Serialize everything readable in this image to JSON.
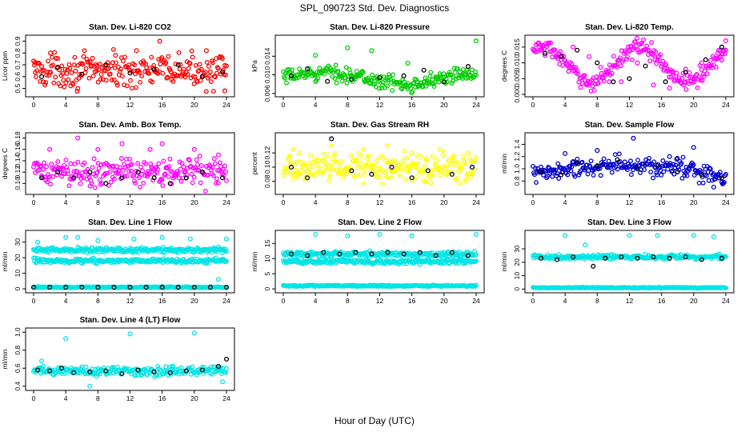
{
  "figure": {
    "title": "SPL_090723  Std. Dev. Diagnostics",
    "xlabel": "Hour of Day (UTC)"
  },
  "chart_data": [
    {
      "type": "scatter",
      "title": "Stan. Dev. Li-820 CO2",
      "ylabel": "Licor ppm",
      "xlim": [
        0,
        24
      ],
      "ylim": [
        0.45,
        0.93
      ],
      "xticks": [
        0,
        4,
        8,
        12,
        16,
        20,
        24
      ],
      "yticks": [
        0.5,
        0.6,
        0.7,
        0.8,
        0.9
      ],
      "yticklabels": [
        "0.5",
        "0.6",
        "0.7",
        "0.8",
        "0.9"
      ],
      "color": "#ff0000",
      "series": [
        {
          "x": [
            0.2,
            2.1,
            5.5,
            10.2,
            12.8,
            15.7,
            21.5,
            23.8
          ],
          "y": [
            0.72,
            0.8,
            0.5,
            0.78,
            0.82,
            0.9,
            0.82,
            0.48
          ]
        },
        {
          "x": [
            1.0,
            3.0,
            6.0,
            9.0,
            12.0,
            15.0,
            18.0,
            21.0,
            23.5
          ],
          "y": [
            0.6,
            0.68,
            0.62,
            0.7,
            0.63,
            0.66,
            0.7,
            0.6,
            0.64
          ],
          "marker": "black"
        }
      ],
      "band": {
        "center": 0.65,
        "spread": 0.1
      }
    },
    {
      "type": "scatter",
      "title": "Stan. Dev. Li-820 Pressure",
      "ylabel": "kPa",
      "xlim": [
        0,
        24
      ],
      "ylim": [
        0.0058,
        0.018
      ],
      "xticks": [
        0,
        4,
        8,
        12,
        16,
        20,
        24
      ],
      "yticks": [
        0.006,
        0.01,
        0.014
      ],
      "yticklabels": [
        "0.006",
        "0.010",
        "0.014"
      ],
      "color": "#00cc00",
      "series": [
        {
          "x": [
            4.0,
            8.0,
            11.0,
            15.5,
            24.0
          ],
          "y": [
            0.0142,
            0.0158,
            0.0152,
            0.0125,
            0.0173
          ]
        },
        {
          "x": [
            1.0,
            3.0,
            5.5,
            8.5,
            12.0,
            15.0,
            17.5,
            20.0,
            23.0
          ],
          "y": [
            0.0098,
            0.0113,
            0.0086,
            0.009,
            0.0094,
            0.0098,
            0.011,
            0.0085,
            0.0118
          ],
          "marker": "black"
        }
      ],
      "band": {
        "center": 0.0093,
        "spread": 0.0012
      }
    },
    {
      "type": "scatter",
      "title": "Stan. Dev. Li-820 Temp.",
      "ylabel": "degrees C",
      "xlim": [
        0,
        24
      ],
      "ylim": [
        0.0,
        0.018
      ],
      "xticks": [
        0,
        4,
        8,
        12,
        16,
        20,
        24
      ],
      "yticks": [
        0.0,
        0.005,
        0.01,
        0.015
      ],
      "yticklabels": [
        "0.000",
        "0.005",
        "0.010",
        "0.015"
      ],
      "color": "#ff00ff",
      "series": [
        {
          "x": [
            1.0,
            3.0,
            5.0,
            7.0,
            9.5,
            11.0,
            13.0,
            15.0,
            17.0,
            19.0,
            21.0,
            23.0,
            24.0
          ],
          "y": [
            0.014,
            0.012,
            0.015,
            0.012,
            0.004,
            0.004,
            0.01,
            0.003,
            0.002,
            0.008,
            0.01,
            0.013,
            0.017
          ]
        },
        {
          "x": [
            1.5,
            3.5,
            5.5,
            8.0,
            10.0,
            12.0,
            14.0,
            16.5,
            19.0,
            21.5,
            23.5
          ],
          "y": [
            0.013,
            0.012,
            0.014,
            0.01,
            0.004,
            0.005,
            0.009,
            0.004,
            0.007,
            0.011,
            0.015
          ],
          "marker": "black"
        }
      ],
      "band": {
        "center": 0.01,
        "spread": 0.002
      }
    },
    {
      "type": "scatter",
      "title": "Stan. Dev. Amb. Box Temp.",
      "ylabel": "degrees C",
      "xlim": [
        0,
        24
      ],
      "ylim": [
        0.085,
        0.185
      ],
      "xticks": [
        0,
        4,
        8,
        12,
        16,
        20,
        24
      ],
      "yticks": [
        0.1,
        0.12,
        0.14,
        0.16,
        0.18
      ],
      "yticklabels": [
        "0.10",
        "0.12",
        "0.14",
        "0.16",
        "0.18"
      ],
      "color": "#ff00ff",
      "series": [
        {
          "x": [
            2.0,
            5.5,
            8.0,
            11.0,
            14.5,
            16.0,
            20.0,
            23.0
          ],
          "y": [
            0.16,
            0.18,
            0.16,
            0.17,
            0.16,
            0.17,
            0.16,
            0.15
          ]
        },
        {
          "x": [
            1.0,
            3.0,
            5.0,
            7.0,
            9.0,
            11.0,
            13.0,
            15.0,
            17.0,
            19.0,
            21.0,
            23.5
          ],
          "y": [
            0.11,
            0.12,
            0.11,
            0.12,
            0.1,
            0.11,
            0.12,
            0.11,
            0.1,
            0.11,
            0.12,
            0.11
          ],
          "marker": "black"
        }
      ],
      "band": {
        "center": 0.12,
        "spread": 0.018
      }
    },
    {
      "type": "scatter",
      "title": "Stan. Dev. Gas Stream RH",
      "ylabel": "percent",
      "xlim": [
        0,
        24
      ],
      "ylim": [
        0.065,
        0.145
      ],
      "xticks": [
        0,
        4,
        8,
        12,
        16,
        20,
        24
      ],
      "yticks": [
        0.08,
        0.1,
        0.12
      ],
      "yticklabels": [
        "0.08",
        "0.10",
        "0.12"
      ],
      "color": "#ffff00",
      "series": [
        {
          "x": [
            2.0,
            6.0,
            10.0,
            13.0,
            16.0,
            19.5,
            23.0
          ],
          "y": [
            0.12,
            0.13,
            0.125,
            0.13,
            0.12,
            0.125,
            0.12
          ]
        },
        {
          "x": [
            1.0,
            3.0,
            6.0,
            8.5,
            11.0,
            13.5,
            16.0,
            18.0,
            21.0,
            23.5
          ],
          "y": [
            0.1,
            0.085,
            0.14,
            0.095,
            0.09,
            0.1,
            0.085,
            0.095,
            0.09,
            0.1
          ],
          "marker": "black"
        }
      ],
      "band": {
        "center": 0.1,
        "spread": 0.015
      }
    },
    {
      "type": "scatter",
      "title": "Stan. Dev. Sample Flow",
      "ylabel": "ml/min",
      "xlim": [
        0,
        24
      ],
      "ylim": [
        0.62,
        1.55
      ],
      "xticks": [
        0,
        4,
        8,
        12,
        16,
        20,
        24
      ],
      "yticks": [
        0.8,
        1.0,
        1.2,
        1.4
      ],
      "yticklabels": [
        "0.8",
        "1.0",
        "1.2",
        "1.4"
      ],
      "color": "#0000cc",
      "series": [
        {
          "x": [
            4.0,
            8.0,
            12.5,
            17.0,
            20.0,
            22.5
          ],
          "y": [
            1.25,
            1.3,
            1.5,
            1.2,
            1.35,
            0.7
          ]
        },
        {
          "x": [
            1.0,
            3.5,
            5.5,
            8.0,
            10.5,
            13.0,
            15.5,
            18.0,
            21.0,
            23.5
          ],
          "y": [
            0.95,
            0.9,
            1.1,
            1.05,
            1.15,
            1.0,
            1.05,
            0.95,
            0.9,
            0.85
          ],
          "marker": "black"
        }
      ],
      "band": {
        "center": 0.98,
        "spread": 0.12
      }
    },
    {
      "type": "scatter",
      "title": "Stan. Dev. Line 1 Flow",
      "ylabel": "ml/min",
      "xlim": [
        0,
        24
      ],
      "ylim": [
        -1,
        36
      ],
      "xticks": [
        0,
        4,
        8,
        12,
        16,
        20,
        24
      ],
      "yticks": [
        0,
        10,
        20,
        30
      ],
      "yticklabels": [
        "0",
        "10",
        "20",
        "30"
      ],
      "color": "#00e5e5",
      "series": [
        {
          "x": [
            0.5,
            4.0,
            5.5,
            8.0,
            12.5,
            16.0,
            19.5,
            23.0,
            24.0
          ],
          "y": [
            30,
            33,
            33,
            31,
            32,
            33,
            32,
            6,
            32
          ]
        },
        {
          "x": [
            0.0,
            2.0,
            4.0,
            6.0,
            8.0,
            10.0,
            12.0,
            14.0,
            16.0,
            18.0,
            20.0,
            22.0,
            24.0
          ],
          "y": [
            1,
            1,
            1,
            1,
            1,
            1,
            1,
            1,
            1,
            1,
            1,
            1,
            1
          ],
          "marker": "black"
        }
      ],
      "bands": [
        {
          "center": 25,
          "spread": 1.2
        },
        {
          "center": 18,
          "spread": 1.2
        },
        {
          "center": 1,
          "spread": 0.3
        }
      ]
    },
    {
      "type": "scatter",
      "title": "Stan. Dev. Line 2 Flow",
      "ylabel": "ml/min",
      "xlim": [
        0,
        24
      ],
      "ylim": [
        -0.5,
        18.5
      ],
      "xticks": [
        0,
        4,
        8,
        12,
        16,
        20,
        24
      ],
      "yticks": [
        0,
        5,
        10,
        15
      ],
      "yticklabels": [
        "0",
        "5",
        "10",
        "15"
      ],
      "color": "#00e5e5",
      "series": [
        {
          "x": [
            4.0,
            8.0,
            12.0,
            16.0,
            24.0
          ],
          "y": [
            18,
            17.5,
            18,
            17.5,
            18
          ]
        },
        {
          "x": [
            1.0,
            3.0,
            5.0,
            7.0,
            9.0,
            11.0,
            13.0,
            15.0,
            17.0,
            19.0,
            21.0,
            23.0
          ],
          "y": [
            11.5,
            11,
            12,
            11.5,
            12,
            11.5,
            12,
            11.5,
            12,
            11,
            12,
            11
          ],
          "marker": "black"
        }
      ],
      "bands": [
        {
          "center": 11.5,
          "spread": 0.7
        },
        {
          "center": 9,
          "spread": 0.6
        },
        {
          "center": 1,
          "spread": 0.2
        }
      ]
    },
    {
      "type": "scatter",
      "title": "Stan. Dev. Line 3 Flow",
      "ylabel": "ml/min",
      "xlim": [
        0,
        24
      ],
      "ylim": [
        -1,
        42
      ],
      "xticks": [
        0,
        4,
        8,
        12,
        16,
        20,
        24
      ],
      "yticks": [
        0,
        10,
        20,
        30
      ],
      "yticklabels": [
        "0",
        "10",
        "20",
        "30"
      ],
      "color": "#00e5e5",
      "series": [
        {
          "x": [
            4.0,
            6.5,
            12.0,
            15.5,
            20.0,
            22.5
          ],
          "y": [
            40,
            33,
            40,
            40,
            40,
            39
          ]
        },
        {
          "x": [
            1.0,
            3.0,
            5.0,
            7.5,
            9.0,
            11.0,
            13.0,
            15.0,
            17.0,
            19.0,
            21.0,
            23.5
          ],
          "y": [
            23,
            22,
            24,
            17,
            23,
            24,
            23,
            24,
            23,
            24,
            22,
            23
          ],
          "marker": "black"
        }
      ],
      "bands": [
        {
          "center": 24,
          "spread": 1.2
        },
        {
          "center": 1,
          "spread": 0.3
        }
      ]
    },
    {
      "type": "scatter",
      "title": "Stan. Dev. Line 4 (LT) Flow",
      "ylabel": "ml/min",
      "xlim": [
        0,
        24
      ],
      "ylim": [
        0.38,
        1.02
      ],
      "xticks": [
        0,
        4,
        8,
        12,
        16,
        20,
        24
      ],
      "yticks": [
        0.4,
        0.6,
        0.8,
        1.0
      ],
      "yticklabels": [
        "0.4",
        "0.6",
        "0.8",
        "1.0"
      ],
      "color": "#00e5e5",
      "series": [
        {
          "x": [
            4.0,
            12.0,
            20.0,
            1.0,
            23.5,
            7.0
          ],
          "y": [
            0.93,
            0.98,
            0.99,
            0.68,
            0.45,
            0.4
          ]
        },
        {
          "x": [
            0.5,
            2.0,
            3.5,
            5.0,
            7.0,
            9.0,
            11.0,
            13.0,
            15.0,
            17.0,
            19.0,
            21.0,
            23.0,
            24.0
          ],
          "y": [
            0.58,
            0.57,
            0.6,
            0.55,
            0.56,
            0.57,
            0.54,
            0.58,
            0.56,
            0.55,
            0.57,
            0.58,
            0.62,
            0.7
          ],
          "marker": "black"
        }
      ],
      "band": {
        "center": 0.57,
        "spread": 0.04
      }
    }
  ]
}
